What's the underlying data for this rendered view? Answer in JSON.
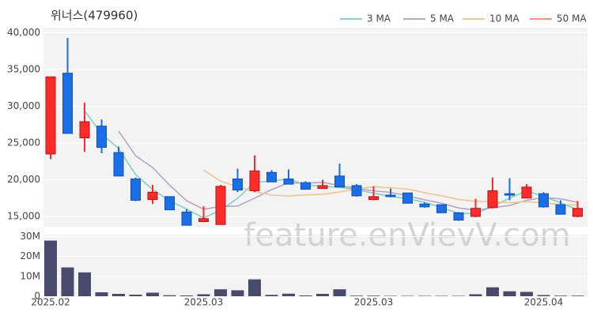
{
  "chart_data": {
    "type": "candlestick",
    "title": "위너스(479960)",
    "watermark": "feature.enVievV.com",
    "categories": [
      "2025.02",
      null,
      null,
      null,
      null,
      null,
      null,
      null,
      null,
      "2025.03",
      null,
      null,
      null,
      null,
      null,
      null,
      null,
      null,
      null,
      "2025.03",
      null,
      null,
      null,
      null,
      null,
      null,
      null,
      null,
      null,
      "2025.04",
      null,
      null
    ],
    "open": [
      23500,
      34500,
      25700,
      27300,
      23700,
      20100,
      17300,
      17700,
      15600,
      14300,
      13900,
      20100,
      18500,
      21000,
      20100,
      19600,
      18800,
      20500,
      19200,
      17300,
      17900,
      18200,
      16700,
      16600,
      15500,
      15000,
      16200,
      18100,
      17500,
      18100,
      16600,
      15000
    ],
    "high": [
      34000,
      39300,
      30500,
      28200,
      24500,
      20300,
      19300,
      17700,
      16000,
      16400,
      19300,
      21500,
      23300,
      21300,
      21400,
      19800,
      20000,
      22200,
      19400,
      19100,
      18800,
      18200,
      16900,
      16600,
      15600,
      17400,
      20300,
      20200,
      19400,
      18300,
      17200,
      17100
    ],
    "low": [
      22800,
      26300,
      23800,
      23600,
      20500,
      17100,
      16700,
      15900,
      13800,
      14300,
      13900,
      18300,
      18300,
      19700,
      19400,
      18700,
      18800,
      19000,
      17700,
      17200,
      17600,
      16800,
      16200,
      15500,
      14400,
      14900,
      16100,
      17200,
      17500,
      16200,
      15300,
      14900
    ],
    "close": [
      34000,
      26300,
      27900,
      24400,
      20500,
      17200,
      18300,
      15900,
      13800,
      14700,
      19100,
      18600,
      21200,
      19700,
      19400,
      18700,
      19200,
      19000,
      17800,
      17700,
      17700,
      16800,
      16300,
      15500,
      14500,
      16100,
      18500,
      17900,
      19000,
      16300,
      15300,
      16100
    ],
    "up_color": "#ff2a2a",
    "down_color": "#1a6ee8",
    "series": [
      {
        "name": "3 MA",
        "color": "#7fd3c6",
        "values": [
          null,
          null,
          29400,
          26200,
          24267,
          20700,
          18667,
          17133,
          16000,
          14800,
          15867,
          17467,
          19633,
          19833,
          20100,
          19267,
          19100,
          18967,
          18667,
          18167,
          17733,
          17400,
          16933,
          16200,
          15433,
          15367,
          16367,
          17500,
          18467,
          17733,
          16867,
          15900
        ]
      },
      {
        "name": "5 MA",
        "color": "#b5a6c8",
        "values": [
          null,
          null,
          null,
          null,
          26620,
          23260,
          21660,
          19260,
          17140,
          15980,
          16360,
          16420,
          17480,
          18660,
          19600,
          19520,
          19640,
          19200,
          18820,
          18480,
          18280,
          17800,
          17260,
          16800,
          16160,
          15840,
          16180,
          16500,
          17200,
          17560,
          17400,
          16920
        ]
      },
      {
        "name": "10 MA",
        "color": "#f2c491",
        "values": [
          null,
          null,
          null,
          null,
          null,
          null,
          null,
          null,
          null,
          21300,
          19810,
          19040,
          18370,
          17900,
          17790,
          17940,
          18030,
          18340,
          18740,
          19040,
          18900,
          18720,
          18230,
          17810,
          17320,
          17060,
          16990,
          16880,
          17000,
          16860,
          16620,
          16550
        ]
      },
      {
        "name": "50 MA",
        "color": "#f4907f",
        "values": [
          null,
          null,
          null,
          null,
          null,
          null,
          null,
          null,
          null,
          null,
          null,
          null,
          null,
          null,
          null,
          null,
          null,
          null,
          null,
          null,
          null,
          null,
          null,
          null,
          null,
          null,
          null,
          null,
          null,
          null,
          null,
          null
        ]
      }
    ],
    "ylim": [
      13600,
      40700
    ],
    "yticks": [
      {
        "value": 15000,
        "label": "15,000"
      },
      {
        "value": 20000,
        "label": "20,000"
      },
      {
        "value": 25000,
        "label": "25,000"
      },
      {
        "value": 30000,
        "label": "30,000"
      },
      {
        "value": 35000,
        "label": "35,000"
      },
      {
        "value": 40000,
        "label": "40,000"
      }
    ],
    "volume": {
      "color": "#4a4a6c",
      "values": [
        28000000,
        14500000,
        12000000,
        2000000,
        1200000,
        800000,
        1800000,
        500000,
        400000,
        1000000,
        3500000,
        3000000,
        8500000,
        700000,
        1300000,
        400000,
        1200000,
        3500000,
        300000,
        300000,
        200000,
        200000,
        200000,
        200000,
        200000,
        1000000,
        4500000,
        2500000,
        2200000,
        600000,
        300000,
        300000
      ],
      "ylim": [
        0,
        31000000
      ],
      "yticks": [
        0,
        {
          "value": 10000000,
          "label": "10M"
        },
        {
          "value": 20000000,
          "label": "20M"
        },
        {
          "value": 30000000,
          "label": "30M"
        }
      ]
    },
    "grid": true
  }
}
